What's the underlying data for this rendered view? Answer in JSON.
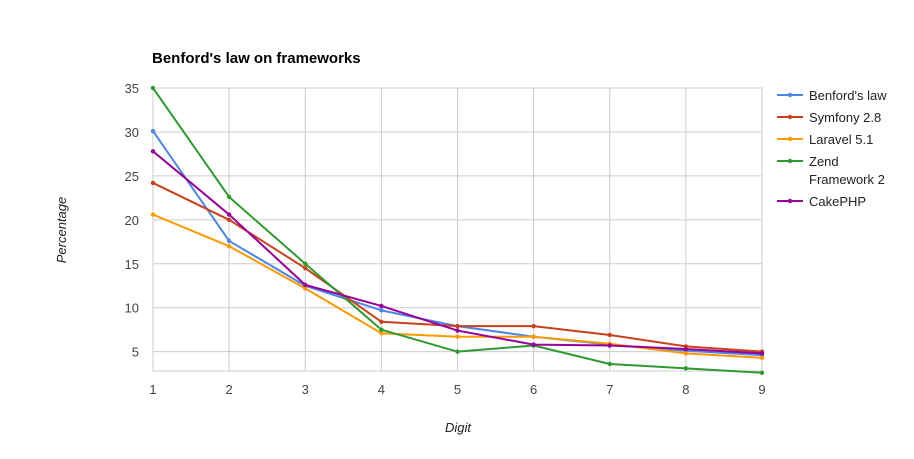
{
  "chart_data": {
    "type": "line",
    "title": "Benford's law on frameworks",
    "xlabel": "Digit",
    "ylabel": "Percentage",
    "x": [
      1,
      2,
      3,
      4,
      5,
      6,
      7,
      8,
      9
    ],
    "ylim": [
      2.8,
      35
    ],
    "yticks": [
      5,
      10,
      15,
      20,
      25,
      30,
      35
    ],
    "grid": true,
    "legend_position": "right",
    "series": [
      {
        "name": "Benford's law",
        "color": "#4a86e8",
        "values": [
          30.1,
          17.6,
          12.5,
          9.7,
          7.9,
          6.7,
          5.8,
          5.1,
          4.6
        ]
      },
      {
        "name": "Symfony 2.8",
        "color": "#c9411c",
        "values": [
          24.2,
          20.0,
          14.5,
          8.4,
          7.9,
          7.9,
          6.9,
          5.6,
          5.0
        ]
      },
      {
        "name": "Laravel 5.1",
        "color": "#ff9900",
        "values": [
          20.6,
          17.0,
          12.2,
          7.1,
          6.7,
          6.7,
          5.9,
          4.8,
          4.3
        ]
      },
      {
        "name": "Zend Framework 2",
        "color": "#2e9b2e",
        "values": [
          35.0,
          22.6,
          15.0,
          7.5,
          5.0,
          5.7,
          3.6,
          3.1,
          2.6
        ]
      },
      {
        "name": "CakePHP",
        "color": "#990099",
        "values": [
          27.8,
          20.6,
          12.6,
          10.2,
          7.4,
          5.8,
          5.7,
          5.3,
          4.8
        ]
      }
    ]
  }
}
